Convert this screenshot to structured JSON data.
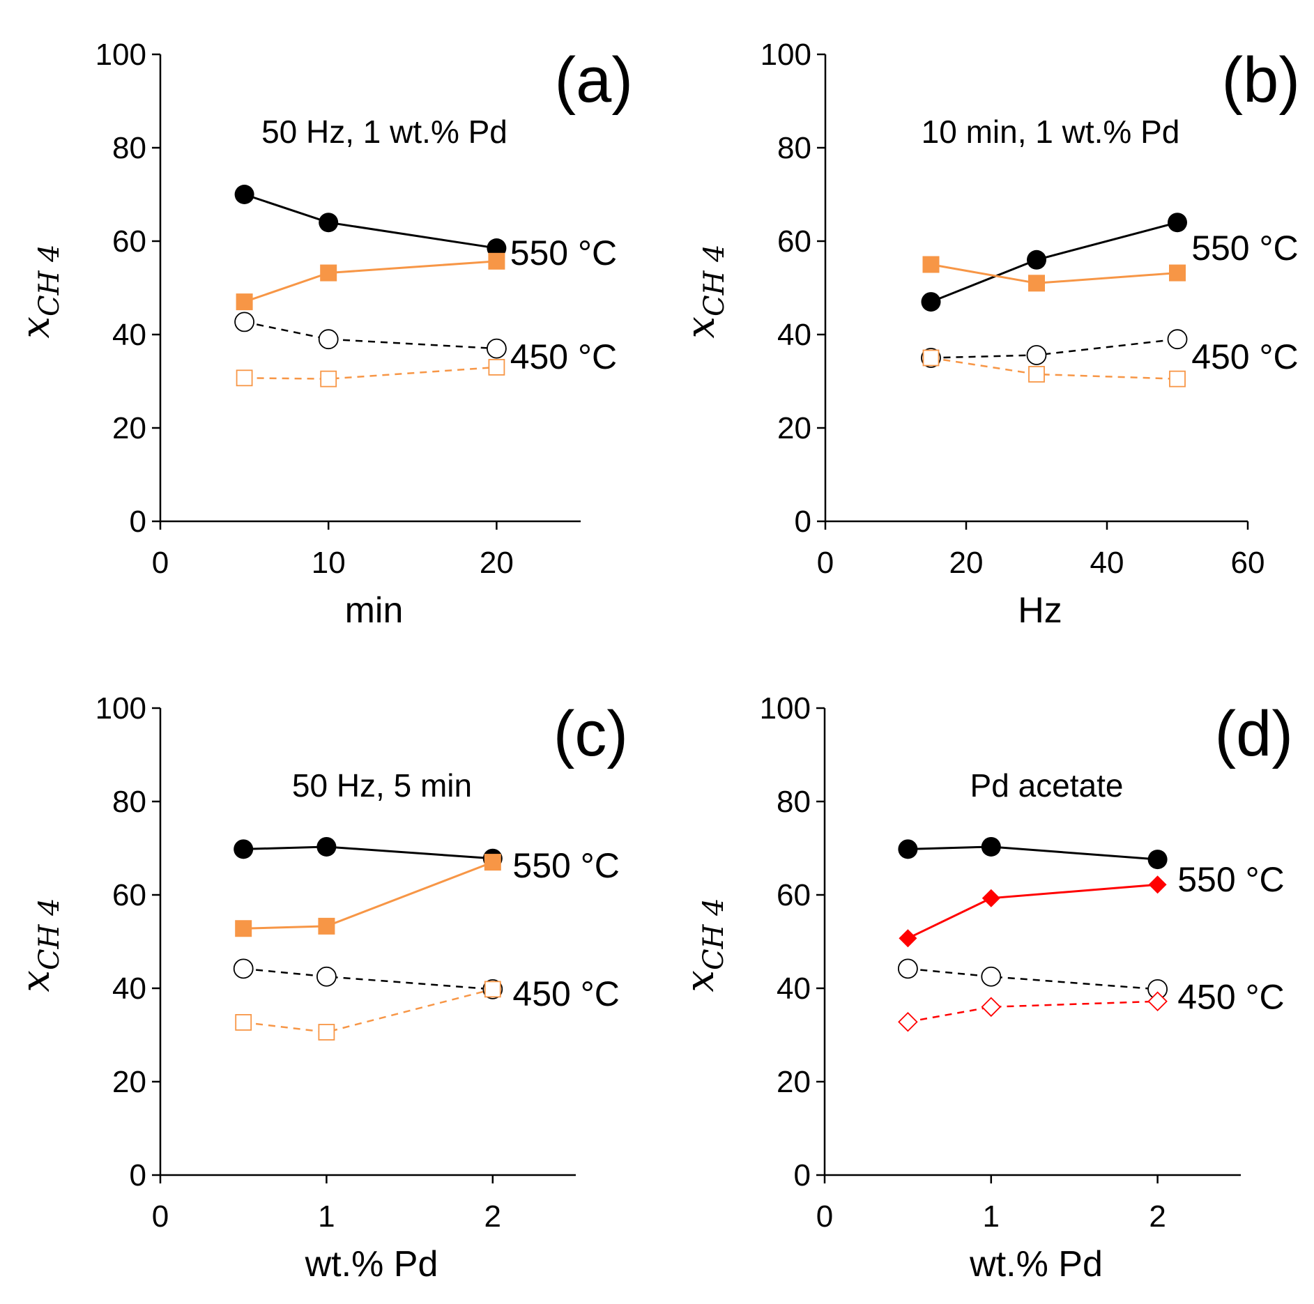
{
  "chart_data": [
    {
      "type": "line",
      "panel_label": "(a)",
      "subtitle": "50 Hz, 1 wt.% Pd",
      "title": "",
      "xlabel": "min",
      "ylabel_main": "x",
      "ylabel_sub": "CH 4",
      "xlim": [
        0,
        25
      ],
      "ylim": [
        0,
        100
      ],
      "xticks": [
        "0",
        "10",
        "20"
      ],
      "yticks": [
        "0",
        "20",
        "40",
        "60",
        "80",
        "100"
      ],
      "x": [
        5,
        10,
        20
      ],
      "series": [
        {
          "name": "550 °C black",
          "values": [
            70,
            64,
            58.5
          ],
          "color": "#000000",
          "marker": "circle",
          "filled": true,
          "dashed": false
        },
        {
          "name": "550 °C orange",
          "values": [
            47,
            53.2,
            55.7
          ],
          "color": "#f79646",
          "marker": "square",
          "filled": true,
          "dashed": false
        },
        {
          "name": "450 °C black",
          "values": [
            42.7,
            39,
            37
          ],
          "color": "#000000",
          "marker": "circle",
          "filled": false,
          "dashed": true
        },
        {
          "name": "450 °C orange",
          "values": [
            30.7,
            30.5,
            33
          ],
          "color": "#f79646",
          "marker": "square",
          "filled": false,
          "dashed": true
        }
      ],
      "annotations": [
        {
          "text": "550 °C",
          "x": 20.8,
          "y": 57.5
        },
        {
          "text": "450 °C",
          "x": 20.8,
          "y": 35.2
        }
      ]
    },
    {
      "type": "line",
      "panel_label": "(b)",
      "subtitle": "10 min, 1 wt.% Pd",
      "title": "",
      "xlabel": "Hz",
      "ylabel_main": "x",
      "ylabel_sub": "CH 4",
      "xlim": [
        0,
        60
      ],
      "ylim": [
        0,
        100
      ],
      "xticks": [
        "0",
        "20",
        "40",
        "60"
      ],
      "yticks": [
        "0",
        "20",
        "40",
        "60",
        "80",
        "100"
      ],
      "x": [
        15,
        30,
        50
      ],
      "series": [
        {
          "name": "550 °C black",
          "values": [
            47,
            56,
            64
          ],
          "color": "#000000",
          "marker": "circle",
          "filled": true,
          "dashed": false
        },
        {
          "name": "550 °C orange",
          "values": [
            55,
            51,
            53.2
          ],
          "color": "#f79646",
          "marker": "square",
          "filled": true,
          "dashed": false
        },
        {
          "name": "450 °C black",
          "values": [
            35,
            35.6,
            39
          ],
          "color": "#000000",
          "marker": "circle",
          "filled": false,
          "dashed": true
        },
        {
          "name": "450 °C orange",
          "values": [
            35,
            31.5,
            30.5
          ],
          "color": "#f79646",
          "marker": "square",
          "filled": false,
          "dashed": true
        }
      ],
      "annotations": [
        {
          "text": "550 °C",
          "x": 52,
          "y": 58.5
        },
        {
          "text": "450 °C",
          "x": 52,
          "y": 35.2
        }
      ]
    },
    {
      "type": "line",
      "panel_label": "(c)",
      "subtitle": "50 Hz, 5 min",
      "title": "",
      "xlabel": "wt.% Pd",
      "ylabel_main": "x",
      "ylabel_sub": "CH 4",
      "xlim": [
        0,
        2.5
      ],
      "ylim": [
        0,
        100
      ],
      "xticks": [
        "0",
        "1",
        "2"
      ],
      "yticks": [
        "0",
        "20",
        "40",
        "60",
        "80",
        "100"
      ],
      "x": [
        0.5,
        1,
        2
      ],
      "series": [
        {
          "name": "550 °C black",
          "values": [
            69.8,
            70.3,
            67.8
          ],
          "color": "#000000",
          "marker": "circle",
          "filled": true,
          "dashed": false
        },
        {
          "name": "550 °C orange",
          "values": [
            52.8,
            53.3,
            67
          ],
          "color": "#f79646",
          "marker": "square",
          "filled": true,
          "dashed": false
        },
        {
          "name": "450 °C black",
          "values": [
            44.2,
            42.5,
            39.8
          ],
          "color": "#000000",
          "marker": "circle",
          "filled": false,
          "dashed": true
        },
        {
          "name": "450 °C orange",
          "values": [
            32.7,
            30.6,
            39.8
          ],
          "color": "#f79646",
          "marker": "square",
          "filled": false,
          "dashed": true
        }
      ],
      "annotations": [
        {
          "text": "550 °C",
          "x": 2.12,
          "y": 66.3
        },
        {
          "text": "450 °C",
          "x": 2.12,
          "y": 38.8
        }
      ]
    },
    {
      "type": "line",
      "panel_label": "(d)",
      "subtitle": "Pd acetate",
      "title": "",
      "xlabel": "wt.% Pd",
      "ylabel_main": "x",
      "ylabel_sub": "CH 4",
      "xlim": [
        0,
        2.5
      ],
      "ylim": [
        0,
        100
      ],
      "xticks": [
        "0",
        "1",
        "2"
      ],
      "yticks": [
        "0",
        "20",
        "40",
        "60",
        "80",
        "100"
      ],
      "x": [
        0.5,
        1,
        2
      ],
      "series": [
        {
          "name": "550 °C black",
          "values": [
            69.8,
            70.3,
            67.6
          ],
          "color": "#000000",
          "marker": "circle",
          "filled": true,
          "dashed": false
        },
        {
          "name": "550 °C red",
          "values": [
            50.7,
            59.3,
            62.2
          ],
          "color": "#ff0000",
          "marker": "diamond",
          "filled": true,
          "dashed": false
        },
        {
          "name": "450 °C black",
          "values": [
            44.2,
            42.5,
            39.8
          ],
          "color": "#000000",
          "marker": "circle",
          "filled": false,
          "dashed": true
        },
        {
          "name": "450 °C red",
          "values": [
            32.8,
            36,
            37.2
          ],
          "color": "#ff0000",
          "marker": "diamond",
          "filled": false,
          "dashed": true
        }
      ],
      "annotations": [
        {
          "text": "550 °C",
          "x": 2.12,
          "y": 63.3
        },
        {
          "text": "450 °C",
          "x": 2.12,
          "y": 38.1
        }
      ]
    }
  ]
}
